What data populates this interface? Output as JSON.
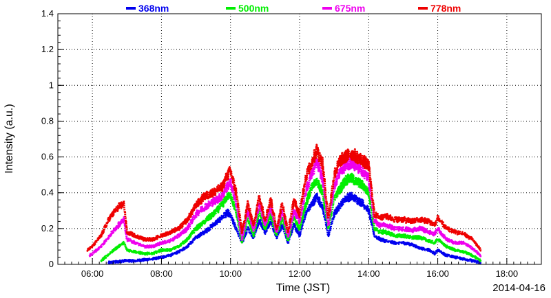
{
  "chart_data": {
    "type": "scatter",
    "xlabel": "Time (JST)",
    "ylabel": "Intensity (a.u.)",
    "date_label": "2014-04-16",
    "xlim": [
      "05:00",
      "19:00"
    ],
    "ylim": [
      0,
      1.4
    ],
    "x_ticks": [
      "06:00",
      "08:00",
      "10:00",
      "12:00",
      "14:00",
      "16:00",
      "18:00"
    ],
    "y_ticks": [
      "0",
      "0.2",
      "0.4",
      "0.6",
      "0.8",
      "1",
      "1.2",
      "1.4"
    ],
    "y_tick_values": [
      0,
      0.2,
      0.4,
      0.6,
      0.8,
      1.0,
      1.2,
      1.4
    ],
    "grid": true,
    "legend_position": "top",
    "x": [
      "05:51",
      "06:00",
      "06:15",
      "06:30",
      "06:45",
      "06:55",
      "07:00",
      "07:15",
      "07:30",
      "07:45",
      "08:00",
      "08:15",
      "08:30",
      "08:45",
      "09:00",
      "09:15",
      "09:30",
      "09:45",
      "09:55",
      "10:00",
      "10:10",
      "10:20",
      "10:30",
      "10:40",
      "10:50",
      "11:00",
      "11:10",
      "11:20",
      "11:30",
      "11:40",
      "11:50",
      "12:00",
      "12:10",
      "12:20",
      "12:30",
      "12:40",
      "12:50",
      "13:00",
      "13:10",
      "13:20",
      "13:30",
      "13:40",
      "13:50",
      "14:00",
      "14:10",
      "14:20",
      "14:30",
      "14:45",
      "15:00",
      "15:15",
      "15:30",
      "15:45",
      "15:55",
      "16:00",
      "16:15",
      "16:30",
      "16:45",
      "17:00",
      "17:15"
    ],
    "series": [
      {
        "name": "368nm",
        "color": "#0000ee",
        "start": "06:28",
        "values": [
          0.01,
          0.01,
          0.01,
          0.01,
          0.015,
          0.02,
          0.02,
          0.02,
          0.025,
          0.03,
          0.04,
          0.05,
          0.07,
          0.1,
          0.15,
          0.18,
          0.22,
          0.26,
          0.29,
          0.27,
          0.2,
          0.12,
          0.2,
          0.15,
          0.25,
          0.18,
          0.24,
          0.15,
          0.22,
          0.12,
          0.22,
          0.16,
          0.28,
          0.33,
          0.38,
          0.32,
          0.16,
          0.28,
          0.33,
          0.37,
          0.38,
          0.36,
          0.34,
          0.3,
          0.16,
          0.14,
          0.13,
          0.12,
          0.12,
          0.11,
          0.09,
          0.08,
          0.06,
          0.08,
          0.05,
          0.04,
          0.03,
          0.02,
          0.01
        ]
      },
      {
        "name": "500nm",
        "color": "#00ee00",
        "start": "06:15",
        "values": [
          0.01,
          0.01,
          0.02,
          0.06,
          0.1,
          0.12,
          0.08,
          0.07,
          0.06,
          0.06,
          0.08,
          0.08,
          0.1,
          0.14,
          0.2,
          0.24,
          0.28,
          0.33,
          0.38,
          0.39,
          0.29,
          0.12,
          0.26,
          0.16,
          0.3,
          0.2,
          0.28,
          0.16,
          0.26,
          0.13,
          0.26,
          0.2,
          0.33,
          0.42,
          0.47,
          0.4,
          0.2,
          0.37,
          0.42,
          0.47,
          0.48,
          0.46,
          0.44,
          0.4,
          0.2,
          0.18,
          0.18,
          0.16,
          0.16,
          0.15,
          0.15,
          0.13,
          0.12,
          0.14,
          0.1,
          0.08,
          0.07,
          0.05,
          0.02
        ]
      },
      {
        "name": "675nm",
        "color": "#ee00ee",
        "start": "05:55",
        "values": [
          0.04,
          0.06,
          0.1,
          0.16,
          0.22,
          0.25,
          0.14,
          0.12,
          0.1,
          0.1,
          0.12,
          0.13,
          0.16,
          0.2,
          0.28,
          0.32,
          0.35,
          0.38,
          0.44,
          0.46,
          0.34,
          0.14,
          0.3,
          0.19,
          0.34,
          0.22,
          0.32,
          0.18,
          0.3,
          0.15,
          0.3,
          0.24,
          0.4,
          0.5,
          0.57,
          0.48,
          0.22,
          0.44,
          0.52,
          0.55,
          0.57,
          0.55,
          0.52,
          0.48,
          0.24,
          0.22,
          0.22,
          0.2,
          0.2,
          0.19,
          0.2,
          0.18,
          0.17,
          0.2,
          0.14,
          0.12,
          0.12,
          0.09,
          0.05
        ]
      },
      {
        "name": "778nm",
        "color": "#ee0000",
        "start": "05:51",
        "values": [
          0.08,
          0.1,
          0.16,
          0.26,
          0.32,
          0.34,
          0.18,
          0.16,
          0.14,
          0.14,
          0.16,
          0.18,
          0.2,
          0.25,
          0.33,
          0.38,
          0.4,
          0.43,
          0.5,
          0.52,
          0.4,
          0.18,
          0.34,
          0.22,
          0.38,
          0.25,
          0.36,
          0.2,
          0.34,
          0.18,
          0.36,
          0.28,
          0.48,
          0.56,
          0.64,
          0.56,
          0.26,
          0.5,
          0.58,
          0.6,
          0.62,
          0.6,
          0.58,
          0.55,
          0.28,
          0.26,
          0.27,
          0.25,
          0.25,
          0.24,
          0.25,
          0.24,
          0.22,
          0.26,
          0.2,
          0.18,
          0.17,
          0.14,
          0.08
        ]
      }
    ]
  }
}
